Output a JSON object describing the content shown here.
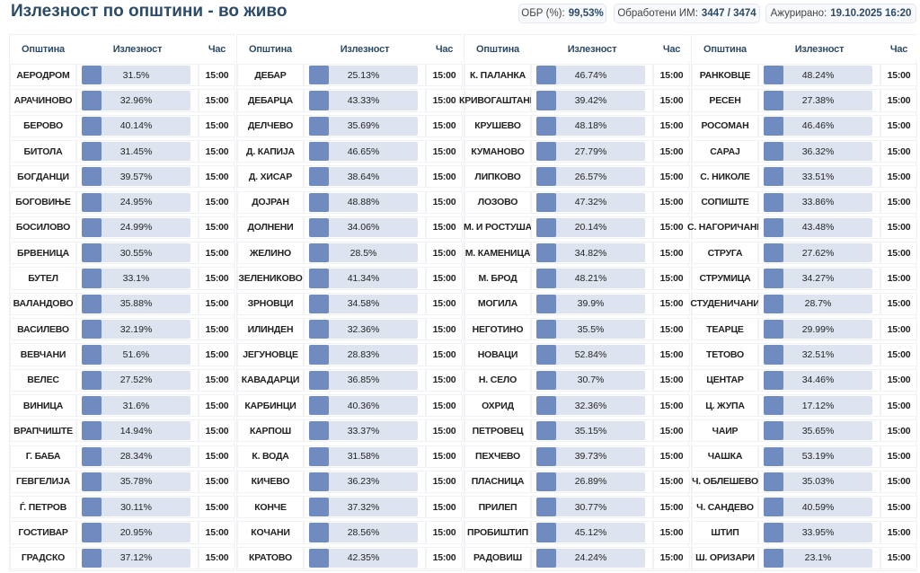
{
  "header": {
    "title": "Излезност по општини - во живо",
    "stats": [
      {
        "label": "ОБР (%):",
        "value": "99,53%"
      },
      {
        "label": "Обработени ИМ:",
        "value": "3447 / 3474"
      },
      {
        "label": "Ажурирано:",
        "value": "19.10.2025 16:20"
      }
    ]
  },
  "tables": [
    {
      "columns": [
        "Општина",
        "Излезност",
        "Час"
      ],
      "rows": [
        [
          "АЕРОДРОМ",
          "31.5%",
          "15:00"
        ],
        [
          "АРАЧИНОВО",
          "32.96%",
          "15:00"
        ],
        [
          "БЕРОВО",
          "40.14%",
          "15:00"
        ],
        [
          "БИТОЛА",
          "31.45%",
          "15:00"
        ],
        [
          "БОГДАНЦИ",
          "39.57%",
          "15:00"
        ],
        [
          "БОГОВИЊЕ",
          "24.95%",
          "15:00"
        ],
        [
          "БОСИЛОВО",
          "24.99%",
          "15:00"
        ],
        [
          "БРВЕНИЦА",
          "30.55%",
          "15:00"
        ],
        [
          "БУТЕЛ",
          "33.1%",
          "15:00"
        ],
        [
          "ВАЛАНДОВО",
          "35.88%",
          "15:00"
        ],
        [
          "ВАСИЛЕВО",
          "32.19%",
          "15:00"
        ],
        [
          "ВЕВЧАНИ",
          "51.6%",
          "15:00"
        ],
        [
          "ВЕЛЕС",
          "27.52%",
          "15:00"
        ],
        [
          "ВИНИЦА",
          "31.6%",
          "15:00"
        ],
        [
          "ВРАПЧИШТЕ",
          "14.94%",
          "15:00"
        ],
        [
          "Г. БАБА",
          "28.34%",
          "15:00"
        ],
        [
          "ГЕВГЕЛИЈА",
          "35.78%",
          "15:00"
        ],
        [
          "Ѓ. ПЕТРОВ",
          "30.11%",
          "15:00"
        ],
        [
          "ГОСТИВАР",
          "20.95%",
          "15:00"
        ],
        [
          "ГРАДСКО",
          "37.12%",
          "15:00"
        ]
      ]
    },
    {
      "columns": [
        "Општина",
        "Излезност",
        "Час"
      ],
      "rows": [
        [
          "ДЕБАР",
          "25.13%",
          "15:00"
        ],
        [
          "ДЕБАРЦА",
          "43.33%",
          "15:00"
        ],
        [
          "ДЕЛЧЕВО",
          "35.69%",
          "15:00"
        ],
        [
          "Д. КАПИЈА",
          "46.65%",
          "15:00"
        ],
        [
          "Д. ХИСАР",
          "38.64%",
          "15:00"
        ],
        [
          "ДОЈРАН",
          "48.88%",
          "15:00"
        ],
        [
          "ДОЛНЕНИ",
          "34.06%",
          "15:00"
        ],
        [
          "ЖЕЛИНО",
          "28.5%",
          "15:00"
        ],
        [
          "ЗЕЛЕНИКОВО",
          "41.34%",
          "15:00"
        ],
        [
          "ЗРНОВЦИ",
          "34.58%",
          "15:00"
        ],
        [
          "ИЛИНДЕН",
          "32.36%",
          "15:00"
        ],
        [
          "ЈЕГУНОВЦЕ",
          "28.83%",
          "15:00"
        ],
        [
          "КАВАДАРЦИ",
          "36.85%",
          "15:00"
        ],
        [
          "КАРБИНЦИ",
          "40.36%",
          "15:00"
        ],
        [
          "КАРПОШ",
          "33.37%",
          "15:00"
        ],
        [
          "К. ВОДА",
          "31.58%",
          "15:00"
        ],
        [
          "КИЧЕВО",
          "36.23%",
          "15:00"
        ],
        [
          "КОНЧЕ",
          "37.32%",
          "15:00"
        ],
        [
          "КОЧАНИ",
          "28.56%",
          "15:00"
        ],
        [
          "КРАТОВО",
          "42.35%",
          "15:00"
        ]
      ]
    },
    {
      "columns": [
        "Општина",
        "Излезност",
        "Час"
      ],
      "rows": [
        [
          "К. ПАЛАНКА",
          "46.74%",
          "15:00"
        ],
        [
          "КРИВОГАШТАНИ",
          "39.42%",
          "15:00"
        ],
        [
          "КРУШЕВО",
          "48.18%",
          "15:00"
        ],
        [
          "КУМАНОВО",
          "27.79%",
          "15:00"
        ],
        [
          "ЛИПКОВО",
          "26.57%",
          "15:00"
        ],
        [
          "ЛОЗОВО",
          "47.32%",
          "15:00"
        ],
        [
          "М. И РОСТУША",
          "20.14%",
          "15:00"
        ],
        [
          "М. КАМЕНИЦА",
          "34.82%",
          "15:00"
        ],
        [
          "М. БРОД",
          "48.21%",
          "15:00"
        ],
        [
          "МОГИЛА",
          "39.9%",
          "15:00"
        ],
        [
          "НЕГОТИНО",
          "35.5%",
          "15:00"
        ],
        [
          "НОВАЦИ",
          "52.84%",
          "15:00"
        ],
        [
          "Н. СЕЛО",
          "30.7%",
          "15:00"
        ],
        [
          "ОХРИД",
          "32.36%",
          "15:00"
        ],
        [
          "ПЕТРОВЕЦ",
          "35.15%",
          "15:00"
        ],
        [
          "ПЕХЧЕВО",
          "39.73%",
          "15:00"
        ],
        [
          "ПЛАСНИЦА",
          "26.89%",
          "15:00"
        ],
        [
          "ПРИЛЕП",
          "30.77%",
          "15:00"
        ],
        [
          "ПРОБИШТИП",
          "45.12%",
          "15:00"
        ],
        [
          "РАДОВИШ",
          "24.24%",
          "15:00"
        ]
      ]
    },
    {
      "columns": [
        "Општина",
        "Излезност",
        "Час"
      ],
      "rows": [
        [
          "РАНКОВЦЕ",
          "48.24%",
          "15:00"
        ],
        [
          "РЕСЕН",
          "27.38%",
          "15:00"
        ],
        [
          "РОСОМАН",
          "46.46%",
          "15:00"
        ],
        [
          "САРАЈ",
          "36.32%",
          "15:00"
        ],
        [
          "С. НИКОЛЕ",
          "33.51%",
          "15:00"
        ],
        [
          "СОПИШТЕ",
          "33.86%",
          "15:00"
        ],
        [
          "С. НАГОРИЧАНЕ",
          "43.48%",
          "15:00"
        ],
        [
          "СТРУГА",
          "27.62%",
          "15:00"
        ],
        [
          "СТРУМИЦА",
          "34.27%",
          "15:00"
        ],
        [
          "СТУДЕНИЧАНИ",
          "28.7%",
          "15:00"
        ],
        [
          "ТЕАРЦЕ",
          "29.99%",
          "15:00"
        ],
        [
          "ТЕТОВО",
          "32.51%",
          "15:00"
        ],
        [
          "ЦЕНТАР",
          "34.46%",
          "15:00"
        ],
        [
          "Ц. ЖУПА",
          "17.12%",
          "15:00"
        ],
        [
          "ЧАИР",
          "35.65%",
          "15:00"
        ],
        [
          "ЧАШКА",
          "53.19%",
          "15:00"
        ],
        [
          "Ч. ОБЛЕШЕВО",
          "35.03%",
          "15:00"
        ],
        [
          "Ч. САНДЕВО",
          "40.59%",
          "15:00"
        ],
        [
          "ШТИП",
          "33.95%",
          "15:00"
        ],
        [
          "Ш. ОРИЗАРИ",
          "23.1%",
          "15:00"
        ]
      ]
    }
  ]
}
